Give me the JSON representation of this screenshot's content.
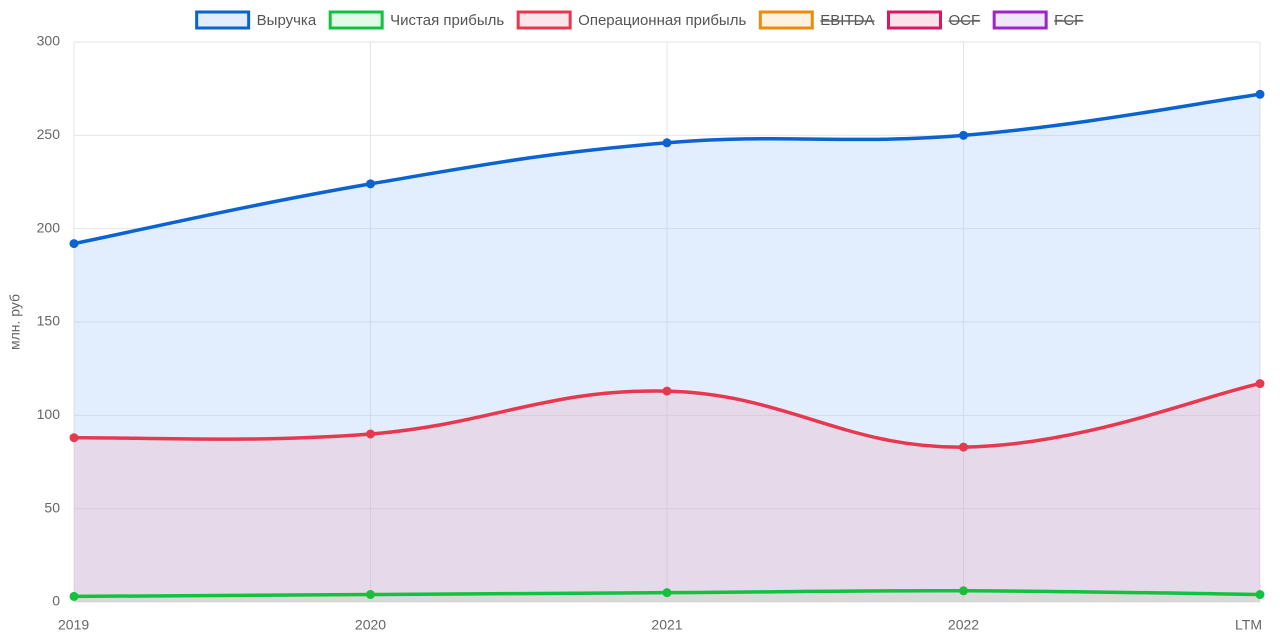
{
  "chart_data": {
    "type": "line",
    "y_label": "млн. руб",
    "categories": [
      "2019",
      "2020",
      "2021",
      "2022",
      "LTM"
    ],
    "ylim": [
      0,
      300
    ],
    "yticks": [
      0,
      50,
      100,
      150,
      200,
      250,
      300
    ],
    "grid": true,
    "legend": "top",
    "series": [
      {
        "name": "Выручка",
        "color": "#0a63d0",
        "fill": "rgba(160,200,250,0.3)",
        "values": [
          192,
          224,
          246,
          250,
          272
        ]
      },
      {
        "name": "Чистая прибыль",
        "color": "#12c23e",
        "fill": "rgba(160,240,180,0.3)",
        "values": [
          3,
          4,
          5,
          6,
          4
        ]
      },
      {
        "name": "Операционная прибыль",
        "color": "#e8384f",
        "fill": "rgba(240,170,190,0.3)",
        "values": [
          88,
          90,
          113,
          83,
          117
        ]
      },
      {
        "name": "EBITDA",
        "color": "#ef8a10",
        "fill": "rgba(250,210,150,0.3)",
        "hidden": true
      },
      {
        "name": "OCF",
        "color": "#d8185f",
        "fill": "rgba(240,160,190,0.3)",
        "hidden": true
      },
      {
        "name": "FCF",
        "color": "#9b25c8",
        "fill": "rgba(210,170,240,0.3)",
        "hidden": true
      }
    ]
  }
}
